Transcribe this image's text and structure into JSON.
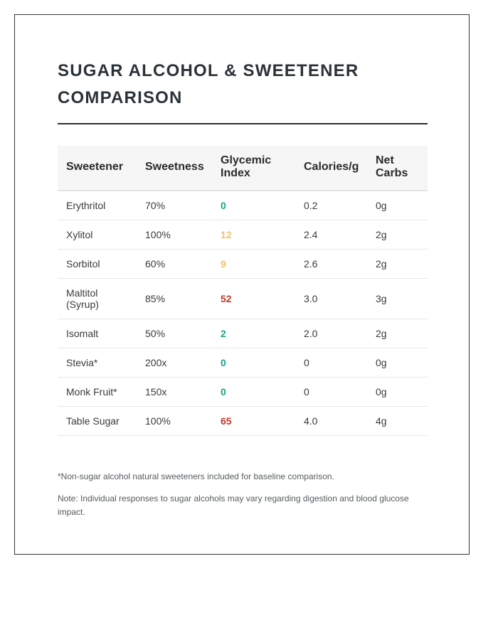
{
  "title": "SUGAR ALCOHOL & SWEETENER COMPARISON",
  "table": {
    "headers": [
      "Sweetener",
      "Sweetness",
      "Glycemic Index",
      "Calories/g",
      "Net Carbs"
    ],
    "rows": [
      {
        "sweetener": "Erythritol",
        "sweetness": "70%",
        "gi": "0",
        "calories": "0.2",
        "net_carbs": "0g",
        "gi_level": "low"
      },
      {
        "sweetener": "Xylitol",
        "sweetness": "100%",
        "gi": "12",
        "calories": "2.4",
        "net_carbs": "2g",
        "gi_level": "medium"
      },
      {
        "sweetener": "Sorbitol",
        "sweetness": "60%",
        "gi": "9",
        "calories": "2.6",
        "net_carbs": "2g",
        "gi_level": "medium"
      },
      {
        "sweetener": "Maltitol (Syrup)",
        "sweetness": "85%",
        "gi": "52",
        "calories": "3.0",
        "net_carbs": "3g",
        "gi_level": "high"
      },
      {
        "sweetener": "Isomalt",
        "sweetness": "50%",
        "gi": "2",
        "calories": "2.0",
        "net_carbs": "2g",
        "gi_level": "low"
      },
      {
        "sweetener": "Stevia*",
        "sweetness": "200x",
        "gi": "0",
        "calories": "0",
        "net_carbs": "0g",
        "gi_level": "low"
      },
      {
        "sweetener": "Monk Fruit*",
        "sweetness": "150x",
        "gi": "0",
        "calories": "0",
        "net_carbs": "0g",
        "gi_level": "low"
      },
      {
        "sweetener": "Table Sugar",
        "sweetness": "100%",
        "gi": "65",
        "calories": "4.0",
        "net_carbs": "4g",
        "gi_level": "high"
      }
    ]
  },
  "colors": {
    "gi_low": "#17a589",
    "gi_medium": "#f5c16c",
    "gi_high": "#c0392b"
  },
  "footnote": "*Non-sugar alcohol natural sweeteners included for baseline comparison.",
  "note": "Note: Individual responses to sugar alcohols may vary regarding digestion and blood glucose impact."
}
